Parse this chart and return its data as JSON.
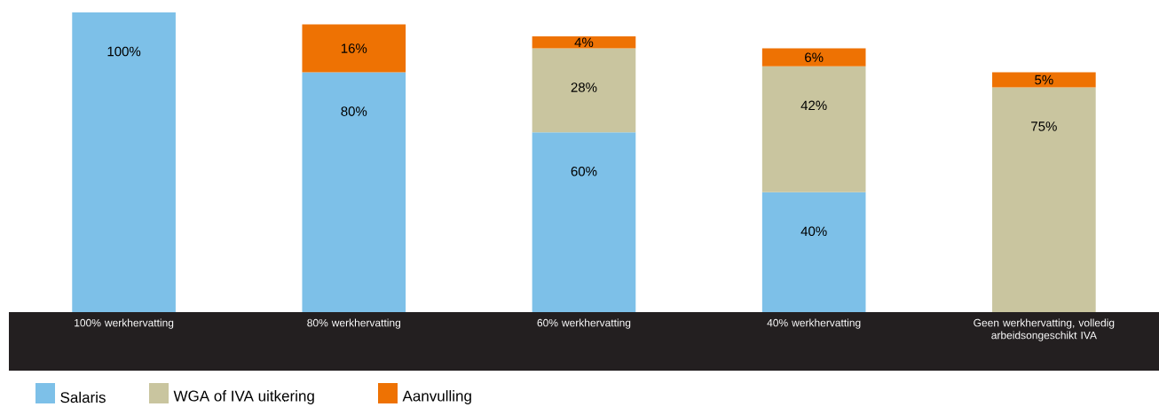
{
  "chart_data": {
    "type": "bar",
    "stacked": true,
    "legend": "bottom left",
    "categories": [
      "100% werkhervatting",
      "80% werkhervatting",
      "60% werkhervatting",
      "40% werkhervatting",
      "Geen werkhervatting, volledig arbeidsongeschikt IVA"
    ],
    "series": [
      {
        "name": "Salaris",
        "color": "#7dc0e8",
        "values": [
          100,
          80,
          60,
          40,
          null
        ],
        "value_labels": [
          "100%",
          "80%",
          "60%",
          "40%",
          null
        ]
      },
      {
        "name": "WGA of IVA uitkering",
        "color": "#c9c59f",
        "values": [
          null,
          null,
          28,
          42,
          75
        ],
        "value_labels": [
          null,
          null,
          "28%",
          "42%",
          "75%"
        ]
      },
      {
        "name": "Aanvulling",
        "color": "#ee7203",
        "values": [
          null,
          16,
          4,
          6,
          5
        ],
        "value_labels": [
          null,
          "16%",
          "4%",
          "6%",
          "5%"
        ]
      }
    ]
  }
}
